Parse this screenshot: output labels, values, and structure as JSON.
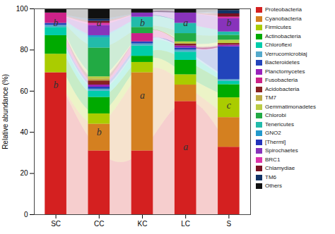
{
  "chart_data": {
    "type": "bar",
    "stacked": true,
    "categories": [
      "SC",
      "CC",
      "KC",
      "LC",
      "S"
    ],
    "series": [
      {
        "name": "Proteobacteria",
        "color": "#D42020",
        "values": [
          69,
          31,
          31,
          55,
          32.8
        ]
      },
      {
        "name": "Cyanobacteria",
        "color": "#D48020",
        "values": [
          0,
          13,
          38,
          8,
          14.4
        ]
      },
      {
        "name": "Firmicutes",
        "color": "#AACC00",
        "values": [
          9,
          5,
          5,
          5,
          9.6
        ]
      },
      {
        "name": "Actinobacteria",
        "color": "#00AA00",
        "values": [
          9,
          8,
          3,
          7,
          6.4
        ]
      },
      {
        "name": "Chloroflexi",
        "color": "#00CCAA",
        "values": [
          4,
          3,
          5,
          4,
          1.6
        ]
      },
      {
        "name": "Verrucomicrobiaj",
        "color": "#55AACC",
        "values": [
          1,
          1,
          1,
          1,
          0.8
        ]
      },
      {
        "name": "Bacteroidetes",
        "color": "#2244BB",
        "values": [
          1,
          1,
          1,
          1,
          16
        ]
      },
      {
        "name": "Planctomycetes",
        "color": "#9922BB",
        "values": [
          0,
          1,
          0,
          1,
          0.8
        ]
      },
      {
        "name": "Fusobacteria",
        "color": "#CC2288",
        "values": [
          5,
          0,
          4,
          0,
          0
        ]
      },
      {
        "name": "Acidobacteria",
        "color": "#882222",
        "values": [
          0,
          2,
          0,
          1,
          0.8
        ]
      },
      {
        "name": "TM7",
        "color": "#BBAA44",
        "values": [
          0,
          1,
          0,
          0,
          0
        ]
      },
      {
        "name": "Gemmatimonadetes",
        "color": "#BBCC44",
        "values": [
          0,
          1,
          0,
          1,
          1.6
        ]
      },
      {
        "name": "Chlorobi",
        "color": "#22AA44",
        "values": [
          0,
          14,
          3,
          4,
          2.4
        ]
      },
      {
        "name": "Tenericutes",
        "color": "#22BBAA",
        "values": [
          0,
          5,
          5,
          5,
          1.6
        ]
      },
      {
        "name": "GNO2",
        "color": "#2299CC",
        "values": [
          0,
          1,
          0,
          0,
          0
        ]
      },
      {
        "name": "[Thermi]",
        "color": "#2233BB",
        "values": [
          0,
          0,
          0,
          0,
          0
        ]
      },
      {
        "name": "Spirochaetes",
        "color": "#8833BB",
        "values": [
          0,
          5,
          2,
          5,
          6.4
        ]
      },
      {
        "name": "BRC1",
        "color": "#DD33AA",
        "values": [
          0,
          1,
          0,
          0,
          0.8
        ]
      },
      {
        "name": "Chlamydiae",
        "color": "#771122",
        "values": [
          0,
          1,
          0,
          0,
          1.6
        ]
      },
      {
        "name": "TM6",
        "color": "#113366",
        "values": [
          0,
          1,
          0,
          0,
          1.6
        ]
      },
      {
        "name": "Others",
        "color": "#111111",
        "values": [
          2,
          5,
          2,
          2,
          0.8
        ]
      }
    ],
    "ylabel": "Relative abundance (%)",
    "ylim": [
      0,
      100
    ],
    "yticks": [
      0,
      20,
      40,
      60,
      80,
      100
    ],
    "grid": false,
    "legend": "right",
    "annotations": [
      {
        "text": "b",
        "x": "SC",
        "y": 93
      },
      {
        "text": "a",
        "x": "CC",
        "y": 93
      },
      {
        "text": "b",
        "x": "KC",
        "y": 93
      },
      {
        "text": "a",
        "x": "LC",
        "y": 93
      },
      {
        "text": "b",
        "x": "S",
        "y": 93
      },
      {
        "text": "b",
        "x": "SC",
        "y": 63
      },
      {
        "text": "b",
        "x": "CC",
        "y": 40
      },
      {
        "text": "a",
        "x": "KC",
        "y": 58
      },
      {
        "text": "a",
        "x": "LC",
        "y": 33
      },
      {
        "text": "c",
        "x": "S",
        "y": 53
      }
    ]
  }
}
